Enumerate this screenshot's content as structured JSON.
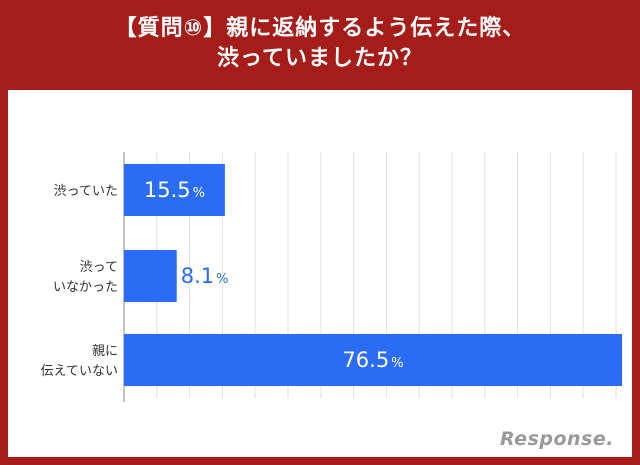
{
  "header": {
    "title_line1": "【質問⑩】親に返納するよう伝えた際、",
    "title_line2": "渋っていましたか？"
  },
  "colors": {
    "header_bg": "#a51c19",
    "bar": "#2b6cf5",
    "label_on_bar": "#ffffff",
    "label_outside": "#2b6cf5"
  },
  "logo_text": "Response.",
  "chart_data": {
    "type": "bar",
    "orientation": "horizontal",
    "categories": [
      [
        "渋っていた"
      ],
      [
        "渋って",
        "いなかった"
      ],
      [
        "親に",
        "伝えていない"
      ]
    ],
    "values": [
      15.5,
      8.1,
      76.5
    ],
    "value_labels": [
      "15.5",
      "8.1",
      "76.5"
    ],
    "unit": "%",
    "xlim": [
      0,
      76.5
    ],
    "grid": true,
    "legend": "none"
  }
}
